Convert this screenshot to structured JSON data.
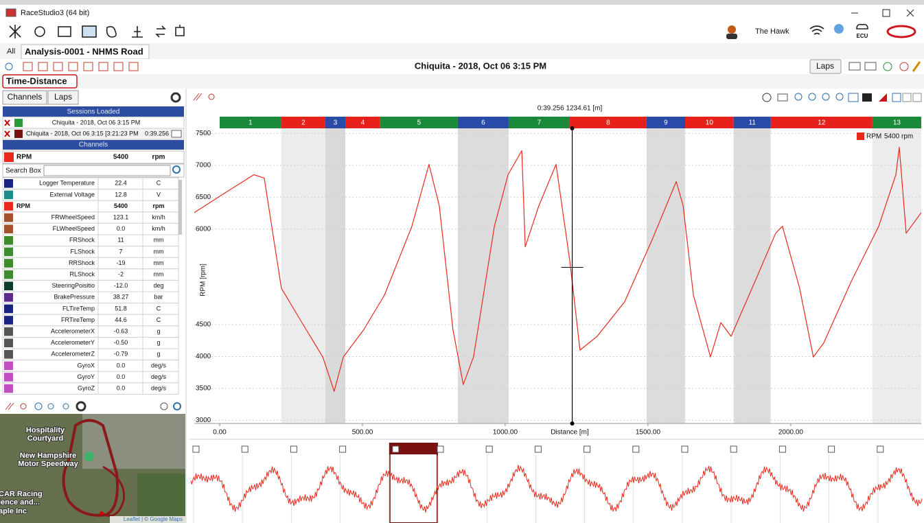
{
  "window": {
    "title": "RaceStudio3 (64 bit)",
    "user": "The Hawk",
    "ecu_label": "ECU"
  },
  "tabs": [
    "All",
    "Analysis-0001 - NHMS Road"
  ],
  "session_title": "Chiquita - 2018, Oct 06 3:15 PM",
  "laps_button": "Laps",
  "view_tab": "Time-Distance",
  "left_panel": {
    "buttons": [
      "Channels",
      "Laps"
    ],
    "sessions_header": "Sessions Loaded",
    "sessions": [
      {
        "name": "Chiquita - 2018, Oct 06 3:15 PM"
      },
      {
        "name": "Chiquita - 2018, Oct 06 3:15 [3:21:23 PM",
        "time": "0:39.256"
      }
    ],
    "channels_header": "Channels",
    "selected": {
      "name": "RPM",
      "value": "5400",
      "unit": "rpm",
      "color": "#e8291c"
    },
    "search_label": "Search Box",
    "channels": [
      {
        "name": "Logger Temperature",
        "value": "22.4",
        "unit": "C",
        "color": "#1a237e"
      },
      {
        "name": "External Voltage",
        "value": "12.8",
        "unit": "V",
        "color": "#1f8a8a"
      },
      {
        "name": "RPM",
        "value": "5400",
        "unit": "rpm",
        "color": "#e8291c",
        "bold": true
      },
      {
        "name": "FRWheelSpeed",
        "value": "123.1",
        "unit": "km/h",
        "color": "#a0522d"
      },
      {
        "name": "FLWheelSpeed",
        "value": "0.0",
        "unit": "km/h",
        "color": "#a0522d"
      },
      {
        "name": "FRShock",
        "value": "11",
        "unit": "mm",
        "color": "#3c8c2c"
      },
      {
        "name": "FLShock",
        "value": "7",
        "unit": "mm",
        "color": "#3c8c2c"
      },
      {
        "name": "RRShock",
        "value": "-19",
        "unit": "mm",
        "color": "#3c8c2c"
      },
      {
        "name": "RLShock",
        "value": "-2",
        "unit": "mm",
        "color": "#3c8c2c"
      },
      {
        "name": "SteeringPoisitio",
        "value": "-12.0",
        "unit": "deg",
        "color": "#0d3b2e"
      },
      {
        "name": "BrakePressure",
        "value": "38.27",
        "unit": "bar",
        "color": "#5b2a8a"
      },
      {
        "name": "FLTireTemp",
        "value": "51.8",
        "unit": "C",
        "color": "#1a237e"
      },
      {
        "name": "FRTireTemp",
        "value": "44.6",
        "unit": "C",
        "color": "#1a237e"
      },
      {
        "name": "AccelerometerX",
        "value": "-0.63",
        "unit": "g",
        "color": "#555555"
      },
      {
        "name": "AccelerometerY",
        "value": "-0.50",
        "unit": "g",
        "color": "#555555"
      },
      {
        "name": "AccelerometerZ",
        "value": "-0.79",
        "unit": "g",
        "color": "#555555"
      },
      {
        "name": "GyroX",
        "value": "0.0",
        "unit": "deg/s",
        "color": "#c24fc2"
      },
      {
        "name": "GyroY",
        "value": "0.0",
        "unit": "deg/s",
        "color": "#c24fc2"
      },
      {
        "name": "GyroZ",
        "value": "0.0",
        "unit": "deg/s",
        "color": "#c24fc2"
      }
    ]
  },
  "map": {
    "labels": [
      "Hospitality",
      "Courtyard",
      "New Hampshire",
      "Motor Speedway",
      "CAR Racing",
      "ience and...",
      "aple Inc"
    ],
    "attribution": "Leaflet | © Google Maps"
  },
  "chart_data": {
    "type": "line",
    "cursor": {
      "label": "0:39.256  1234.61 [m]",
      "x": 1234.61,
      "y": 5400
    },
    "x_label": "Distance [m]",
    "y_label": "RPM [rpm]",
    "xlim": [
      -89,
      2457
    ],
    "ylim": [
      2950,
      7580
    ],
    "xticks": [
      {
        "value": 0,
        "label": "0.00"
      },
      {
        "value": 500,
        "label": "500.00"
      },
      {
        "value": 1000,
        "label": "1000.00"
      },
      {
        "value": 1500,
        "label": "1500.00"
      },
      {
        "value": 2000,
        "label": "2000.00"
      }
    ],
    "yticks": [
      3000,
      3500,
      4000,
      4500,
      6000,
      6500,
      7000,
      7500
    ],
    "grid": true,
    "sectors": [
      {
        "label": "1",
        "color": "#1a8a3a",
        "shade": "#ffffff",
        "start": 0
      },
      {
        "label": "2",
        "color": "#e8201c",
        "shade": "#ececec",
        "start": 216
      },
      {
        "label": "3",
        "color": "#2a4aa8",
        "shade": "#d9d9d9",
        "start": 370
      },
      {
        "label": "4",
        "color": "#e8201c",
        "shade": "#ffffff",
        "start": 440
      },
      {
        "label": "5",
        "color": "#1a8a3a",
        "shade": "#ffffff",
        "start": 562
      },
      {
        "label": "6",
        "color": "#2a4aa8",
        "shade": "#dcdcdc",
        "start": 834
      },
      {
        "label": "7",
        "color": "#1a8a3a",
        "shade": "#ffffff",
        "start": 1012
      },
      {
        "label": "8",
        "color": "#e8201c",
        "shade": "#ffffff",
        "start": 1226
      },
      {
        "label": "9",
        "color": "#2a4aa8",
        "shade": "#dcdcdc",
        "start": 1495
      },
      {
        "label": "10",
        "color": "#e8201c",
        "shade": "#ffffff",
        "start": 1630
      },
      {
        "label": "11",
        "color": "#2a4aa8",
        "shade": "#dcdcdc",
        "start": 1800
      },
      {
        "label": "12",
        "color": "#e8201c",
        "shade": "#ffffff",
        "start": 1930
      },
      {
        "label": "13",
        "color": "#1a8a3a",
        "shade": "#ececec",
        "start": 2286
      }
    ],
    "legend_value": "5400 rpm",
    "x": [
      -89,
      24,
      120,
      156,
      216,
      288,
      361,
      401,
      433,
      505,
      577,
      673,
      733,
      769,
      817,
      853,
      889,
      962,
      1010,
      1058,
      1070,
      1118,
      1178,
      1226,
      1262,
      1322,
      1418,
      1514,
      1599,
      1623,
      1659,
      1719,
      1755,
      1791,
      1875,
      1947,
      1971,
      2031,
      2079,
      2115,
      2212,
      2308,
      2368,
      2380,
      2404,
      2457
    ],
    "series": [
      {
        "name": "RPM",
        "color": "#e8291c",
        "values": [
          6259,
          6583,
          6853,
          6799,
          5072,
          4533,
          3993,
          3454,
          3993,
          4425,
          4964,
          6043,
          7014,
          6367,
          4425,
          3562,
          3993,
          6043,
          6853,
          7230,
          5720,
          6367,
          7014,
          5504,
          4101,
          4317,
          4857,
          5828,
          6745,
          6367,
          4964,
          3993,
          4533,
          4317,
          5180,
          5935,
          6043,
          5072,
          3993,
          4209,
          5180,
          6043,
          6853,
          7284,
          5935,
          6259
        ]
      }
    ]
  }
}
